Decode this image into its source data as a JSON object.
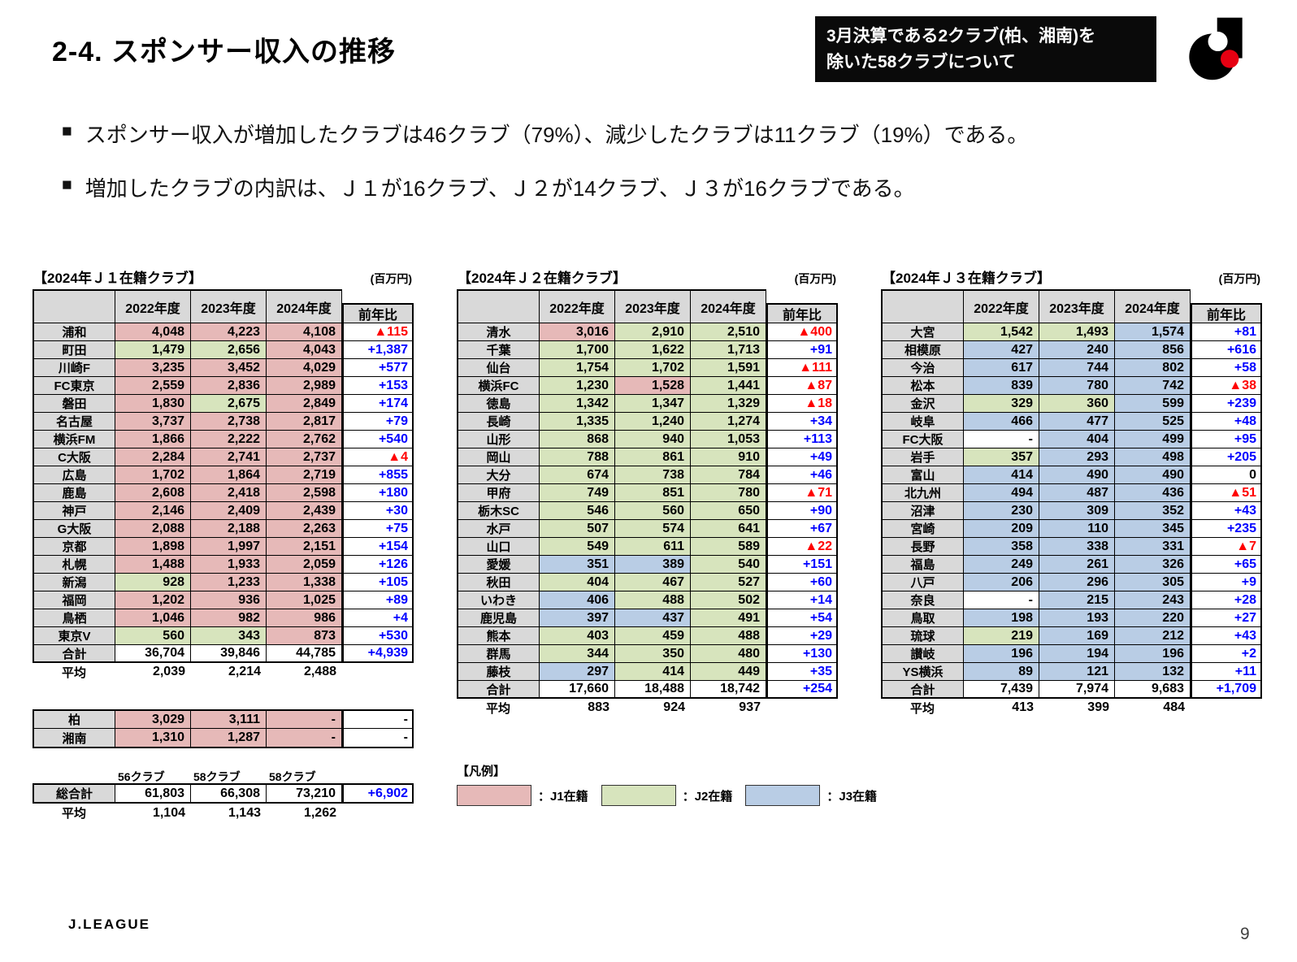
{
  "header": {
    "title": "2-4. スポンサー収入の推移",
    "note_line1": "3月決算である2クラブ(柏、湘南)を",
    "note_line2": "除いた58クラブについて"
  },
  "bullets": [
    "スポンサー収入が増加したクラブは46クラブ（79%）、減少したクラブは11クラブ（19%）である。",
    "増加したクラブの内訳は、Ｊ１が16クラブ、Ｊ２が14クラブ、Ｊ３が16クラブである。"
  ],
  "colors": {
    "j1": "#e6b9b8",
    "j2": "#d7e4bd",
    "j3": "#b9cde5",
    "header_gray": "#d9d9d9",
    "positive_text": "#0000ff",
    "negative_text": "#ff0000",
    "logo_red": "#e60012"
  },
  "unit_label": "(百万円)",
  "year_headers": [
    "2022年度",
    "2023年度",
    "2024年度"
  ],
  "diff_header": "前年比",
  "tables": [
    {
      "title": "【2024年Ｊ１在籍クラブ】",
      "rows": [
        {
          "label": "浦和",
          "values": [
            "4,048",
            "4,223",
            "4,108"
          ],
          "cell_colors": [
            "j1",
            "j1",
            "j1"
          ],
          "diff": "▲115",
          "diff_color": "neg"
        },
        {
          "label": "町田",
          "values": [
            "1,479",
            "2,656",
            "4,043"
          ],
          "cell_colors": [
            "j2",
            "j2",
            "j1"
          ],
          "diff": "+1,387",
          "diff_color": "pos"
        },
        {
          "label": "川崎F",
          "values": [
            "3,235",
            "3,452",
            "4,029"
          ],
          "cell_colors": [
            "j1",
            "j1",
            "j1"
          ],
          "diff": "+577",
          "diff_color": "pos"
        },
        {
          "label": "FC東京",
          "values": [
            "2,559",
            "2,836",
            "2,989"
          ],
          "cell_colors": [
            "j1",
            "j1",
            "j1"
          ],
          "diff": "+153",
          "diff_color": "pos"
        },
        {
          "label": "磐田",
          "values": [
            "1,830",
            "2,675",
            "2,849"
          ],
          "cell_colors": [
            "j1",
            "j2",
            "j1"
          ],
          "diff": "+174",
          "diff_color": "pos"
        },
        {
          "label": "名古屋",
          "values": [
            "3,737",
            "2,738",
            "2,817"
          ],
          "cell_colors": [
            "j1",
            "j1",
            "j1"
          ],
          "diff": "+79",
          "diff_color": "pos"
        },
        {
          "label": "横浜FM",
          "values": [
            "1,866",
            "2,222",
            "2,762"
          ],
          "cell_colors": [
            "j1",
            "j1",
            "j1"
          ],
          "diff": "+540",
          "diff_color": "pos"
        },
        {
          "label": "C大阪",
          "values": [
            "2,284",
            "2,741",
            "2,737"
          ],
          "cell_colors": [
            "j1",
            "j1",
            "j1"
          ],
          "diff": "▲4",
          "diff_color": "neg"
        },
        {
          "label": "広島",
          "values": [
            "1,702",
            "1,864",
            "2,719"
          ],
          "cell_colors": [
            "j1",
            "j1",
            "j1"
          ],
          "diff": "+855",
          "diff_color": "pos"
        },
        {
          "label": "鹿島",
          "values": [
            "2,608",
            "2,418",
            "2,598"
          ],
          "cell_colors": [
            "j1",
            "j1",
            "j1"
          ],
          "diff": "+180",
          "diff_color": "pos"
        },
        {
          "label": "神戸",
          "values": [
            "2,146",
            "2,409",
            "2,439"
          ],
          "cell_colors": [
            "j1",
            "j1",
            "j1"
          ],
          "diff": "+30",
          "diff_color": "pos"
        },
        {
          "label": "G大阪",
          "values": [
            "2,088",
            "2,188",
            "2,263"
          ],
          "cell_colors": [
            "j1",
            "j1",
            "j1"
          ],
          "diff": "+75",
          "diff_color": "pos"
        },
        {
          "label": "京都",
          "values": [
            "1,898",
            "1,997",
            "2,151"
          ],
          "cell_colors": [
            "j1",
            "j1",
            "j1"
          ],
          "diff": "+154",
          "diff_color": "pos"
        },
        {
          "label": "札幌",
          "values": [
            "1,488",
            "1,933",
            "2,059"
          ],
          "cell_colors": [
            "j1",
            "j1",
            "j1"
          ],
          "diff": "+126",
          "diff_color": "pos"
        },
        {
          "label": "新潟",
          "values": [
            "928",
            "1,233",
            "1,338"
          ],
          "cell_colors": [
            "j2",
            "j1",
            "j1"
          ],
          "diff": "+105",
          "diff_color": "pos"
        },
        {
          "label": "福岡",
          "values": [
            "1,202",
            "936",
            "1,025"
          ],
          "cell_colors": [
            "j1",
            "j1",
            "j1"
          ],
          "diff": "+89",
          "diff_color": "pos"
        },
        {
          "label": "鳥栖",
          "values": [
            "1,046",
            "982",
            "986"
          ],
          "cell_colors": [
            "j1",
            "j1",
            "j1"
          ],
          "diff": "+4",
          "diff_color": "pos"
        },
        {
          "label": "東京V",
          "values": [
            "560",
            "343",
            "873"
          ],
          "cell_colors": [
            "j2",
            "j2",
            "j1"
          ],
          "diff": "+530",
          "diff_color": "pos"
        }
      ],
      "total_row": {
        "label": "合計",
        "values": [
          "36,704",
          "39,846",
          "44,785"
        ],
        "diff": "+4,939",
        "diff_color": "pos"
      },
      "avg_row": {
        "label": "平均",
        "values": [
          "2,039",
          "2,214",
          "2,488"
        ]
      }
    },
    {
      "title": "【2024年Ｊ２在籍クラブ】",
      "rows": [
        {
          "label": "清水",
          "values": [
            "3,016",
            "2,910",
            "2,510"
          ],
          "cell_colors": [
            "j1",
            "j2",
            "j2"
          ],
          "diff": "▲400",
          "diff_color": "neg"
        },
        {
          "label": "千葉",
          "values": [
            "1,700",
            "1,622",
            "1,713"
          ],
          "cell_colors": [
            "j2",
            "j2",
            "j2"
          ],
          "diff": "+91",
          "diff_color": "pos"
        },
        {
          "label": "仙台",
          "values": [
            "1,754",
            "1,702",
            "1,591"
          ],
          "cell_colors": [
            "j2",
            "j2",
            "j2"
          ],
          "diff": "▲111",
          "diff_color": "neg"
        },
        {
          "label": "横浜FC",
          "values": [
            "1,230",
            "1,528",
            "1,441"
          ],
          "cell_colors": [
            "j2",
            "j1",
            "j2"
          ],
          "diff": "▲87",
          "diff_color": "neg"
        },
        {
          "label": "徳島",
          "values": [
            "1,342",
            "1,347",
            "1,329"
          ],
          "cell_colors": [
            "j2",
            "j2",
            "j2"
          ],
          "diff": "▲18",
          "diff_color": "neg"
        },
        {
          "label": "長崎",
          "values": [
            "1,335",
            "1,240",
            "1,274"
          ],
          "cell_colors": [
            "j2",
            "j2",
            "j2"
          ],
          "diff": "+34",
          "diff_color": "pos"
        },
        {
          "label": "山形",
          "values": [
            "868",
            "940",
            "1,053"
          ],
          "cell_colors": [
            "j2",
            "j2",
            "j2"
          ],
          "diff": "+113",
          "diff_color": "pos"
        },
        {
          "label": "岡山",
          "values": [
            "788",
            "861",
            "910"
          ],
          "cell_colors": [
            "j2",
            "j2",
            "j2"
          ],
          "diff": "+49",
          "diff_color": "pos"
        },
        {
          "label": "大分",
          "values": [
            "674",
            "738",
            "784"
          ],
          "cell_colors": [
            "j2",
            "j2",
            "j2"
          ],
          "diff": "+46",
          "diff_color": "pos"
        },
        {
          "label": "甲府",
          "values": [
            "749",
            "851",
            "780"
          ],
          "cell_colors": [
            "j2",
            "j2",
            "j2"
          ],
          "diff": "▲71",
          "diff_color": "neg"
        },
        {
          "label": "栃木SC",
          "values": [
            "546",
            "560",
            "650"
          ],
          "cell_colors": [
            "j2",
            "j2",
            "j2"
          ],
          "diff": "+90",
          "diff_color": "pos"
        },
        {
          "label": "水戸",
          "values": [
            "507",
            "574",
            "641"
          ],
          "cell_colors": [
            "j2",
            "j2",
            "j2"
          ],
          "diff": "+67",
          "diff_color": "pos"
        },
        {
          "label": "山口",
          "values": [
            "549",
            "611",
            "589"
          ],
          "cell_colors": [
            "j2",
            "j2",
            "j2"
          ],
          "diff": "▲22",
          "diff_color": "neg"
        },
        {
          "label": "愛媛",
          "values": [
            "351",
            "389",
            "540"
          ],
          "cell_colors": [
            "j3",
            "j3",
            "j2"
          ],
          "diff": "+151",
          "diff_color": "pos"
        },
        {
          "label": "秋田",
          "values": [
            "404",
            "467",
            "527"
          ],
          "cell_colors": [
            "j2",
            "j2",
            "j2"
          ],
          "diff": "+60",
          "diff_color": "pos"
        },
        {
          "label": "いわき",
          "values": [
            "406",
            "488",
            "502"
          ],
          "cell_colors": [
            "j3",
            "j2",
            "j2"
          ],
          "diff": "+14",
          "diff_color": "pos"
        },
        {
          "label": "鹿児島",
          "values": [
            "397",
            "437",
            "491"
          ],
          "cell_colors": [
            "j3",
            "j3",
            "j2"
          ],
          "diff": "+54",
          "diff_color": "pos"
        },
        {
          "label": "熊本",
          "values": [
            "403",
            "459",
            "488"
          ],
          "cell_colors": [
            "j2",
            "j2",
            "j2"
          ],
          "diff": "+29",
          "diff_color": "pos"
        },
        {
          "label": "群馬",
          "values": [
            "344",
            "350",
            "480"
          ],
          "cell_colors": [
            "j2",
            "j2",
            "j2"
          ],
          "diff": "+130",
          "diff_color": "pos"
        },
        {
          "label": "藤枝",
          "values": [
            "297",
            "414",
            "449"
          ],
          "cell_colors": [
            "j3",
            "j2",
            "j2"
          ],
          "diff": "+35",
          "diff_color": "pos"
        }
      ],
      "total_row": {
        "label": "合計",
        "values": [
          "17,660",
          "18,488",
          "18,742"
        ],
        "diff": "+254",
        "diff_color": "pos"
      },
      "avg_row": {
        "label": "平均",
        "values": [
          "883",
          "924",
          "937"
        ]
      }
    },
    {
      "title": "【2024年Ｊ３在籍クラブ】",
      "rows": [
        {
          "label": "大宮",
          "values": [
            "1,542",
            "1,493",
            "1,574"
          ],
          "cell_colors": [
            "j2",
            "j2",
            "j3"
          ],
          "diff": "+81",
          "diff_color": "pos"
        },
        {
          "label": "相模原",
          "values": [
            "427",
            "240",
            "856"
          ],
          "cell_colors": [
            "j3",
            "j3",
            "j3"
          ],
          "diff": "+616",
          "diff_color": "pos"
        },
        {
          "label": "今治",
          "values": [
            "617",
            "744",
            "802"
          ],
          "cell_colors": [
            "j3",
            "j3",
            "j3"
          ],
          "diff": "+58",
          "diff_color": "pos"
        },
        {
          "label": "松本",
          "values": [
            "839",
            "780",
            "742"
          ],
          "cell_colors": [
            "j3",
            "j3",
            "j3"
          ],
          "diff": "▲38",
          "diff_color": "neg"
        },
        {
          "label": "金沢",
          "values": [
            "329",
            "360",
            "599"
          ],
          "cell_colors": [
            "j2",
            "j2",
            "j3"
          ],
          "diff": "+239",
          "diff_color": "pos"
        },
        {
          "label": "岐阜",
          "values": [
            "466",
            "477",
            "525"
          ],
          "cell_colors": [
            "j3",
            "j3",
            "j3"
          ],
          "diff": "+48",
          "diff_color": "pos"
        },
        {
          "label": "FC大阪",
          "values": [
            "-",
            "404",
            "499"
          ],
          "cell_colors": [
            "none",
            "j3",
            "j3"
          ],
          "diff": "+95",
          "diff_color": "pos"
        },
        {
          "label": "岩手",
          "values": [
            "357",
            "293",
            "498"
          ],
          "cell_colors": [
            "j2",
            "j3",
            "j3"
          ],
          "diff": "+205",
          "diff_color": "pos"
        },
        {
          "label": "富山",
          "values": [
            "414",
            "490",
            "490"
          ],
          "cell_colors": [
            "j3",
            "j3",
            "j3"
          ],
          "diff": "0",
          "diff_color": "zero"
        },
        {
          "label": "北九州",
          "values": [
            "494",
            "487",
            "436"
          ],
          "cell_colors": [
            "j3",
            "j3",
            "j3"
          ],
          "diff": "▲51",
          "diff_color": "neg"
        },
        {
          "label": "沼津",
          "values": [
            "230",
            "309",
            "352"
          ],
          "cell_colors": [
            "j3",
            "j3",
            "j3"
          ],
          "diff": "+43",
          "diff_color": "pos"
        },
        {
          "label": "宮崎",
          "values": [
            "209",
            "110",
            "345"
          ],
          "cell_colors": [
            "j3",
            "j3",
            "j3"
          ],
          "diff": "+235",
          "diff_color": "pos"
        },
        {
          "label": "長野",
          "values": [
            "358",
            "338",
            "331"
          ],
          "cell_colors": [
            "j3",
            "j3",
            "j3"
          ],
          "diff": "▲7",
          "diff_color": "neg"
        },
        {
          "label": "福島",
          "values": [
            "249",
            "261",
            "326"
          ],
          "cell_colors": [
            "j3",
            "j3",
            "j3"
          ],
          "diff": "+65",
          "diff_color": "pos"
        },
        {
          "label": "八戸",
          "values": [
            "206",
            "296",
            "305"
          ],
          "cell_colors": [
            "j3",
            "j3",
            "j3"
          ],
          "diff": "+9",
          "diff_color": "pos"
        },
        {
          "label": "奈良",
          "values": [
            "-",
            "215",
            "243"
          ],
          "cell_colors": [
            "none",
            "j3",
            "j3"
          ],
          "diff": "+28",
          "diff_color": "pos"
        },
        {
          "label": "鳥取",
          "values": [
            "198",
            "193",
            "220"
          ],
          "cell_colors": [
            "j3",
            "j3",
            "j3"
          ],
          "diff": "+27",
          "diff_color": "pos"
        },
        {
          "label": "琉球",
          "values": [
            "219",
            "169",
            "212"
          ],
          "cell_colors": [
            "j2",
            "j3",
            "j3"
          ],
          "diff": "+43",
          "diff_color": "pos"
        },
        {
          "label": "讃岐",
          "values": [
            "196",
            "194",
            "196"
          ],
          "cell_colors": [
            "j3",
            "j3",
            "j3"
          ],
          "diff": "+2",
          "diff_color": "pos"
        },
        {
          "label": "YS横浜",
          "values": [
            "89",
            "121",
            "132"
          ],
          "cell_colors": [
            "j3",
            "j3",
            "j3"
          ],
          "diff": "+11",
          "diff_color": "pos"
        }
      ],
      "total_row": {
        "label": "合計",
        "values": [
          "7,439",
          "7,974",
          "9,683"
        ],
        "diff": "+1,709",
        "diff_color": "pos"
      },
      "avg_row": {
        "label": "平均",
        "values": [
          "413",
          "399",
          "484"
        ]
      }
    }
  ],
  "excluded_table": {
    "rows": [
      {
        "label": "柏",
        "values": [
          "3,029",
          "3,111",
          "-"
        ],
        "cell_colors": [
          "j1",
          "j1",
          "j1"
        ],
        "diff": "-",
        "diff_color": "dash"
      },
      {
        "label": "湘南",
        "values": [
          "1,310",
          "1,287",
          "-"
        ],
        "cell_colors": [
          "j1",
          "j1",
          "j1"
        ],
        "diff": "-",
        "diff_color": "dash"
      }
    ]
  },
  "grand_total": {
    "club_counts": [
      "56クラブ",
      "58クラブ",
      "58クラブ"
    ],
    "total_row": {
      "label": "総合計",
      "values": [
        "61,803",
        "66,308",
        "73,210"
      ],
      "diff": "+6,902",
      "diff_color": "pos"
    },
    "avg_row": {
      "label": "平均",
      "values": [
        "1,104",
        "1,143",
        "1,262"
      ]
    }
  },
  "legend": {
    "title": "【凡例】",
    "items": [
      {
        "label": "：J1在籍",
        "color_key": "j1"
      },
      {
        "label": "：J2在籍",
        "color_key": "j2"
      },
      {
        "label": "：J3在籍",
        "color_key": "j3"
      }
    ]
  },
  "footer": {
    "logo": "J.LEAGUE",
    "page_number": "9"
  }
}
